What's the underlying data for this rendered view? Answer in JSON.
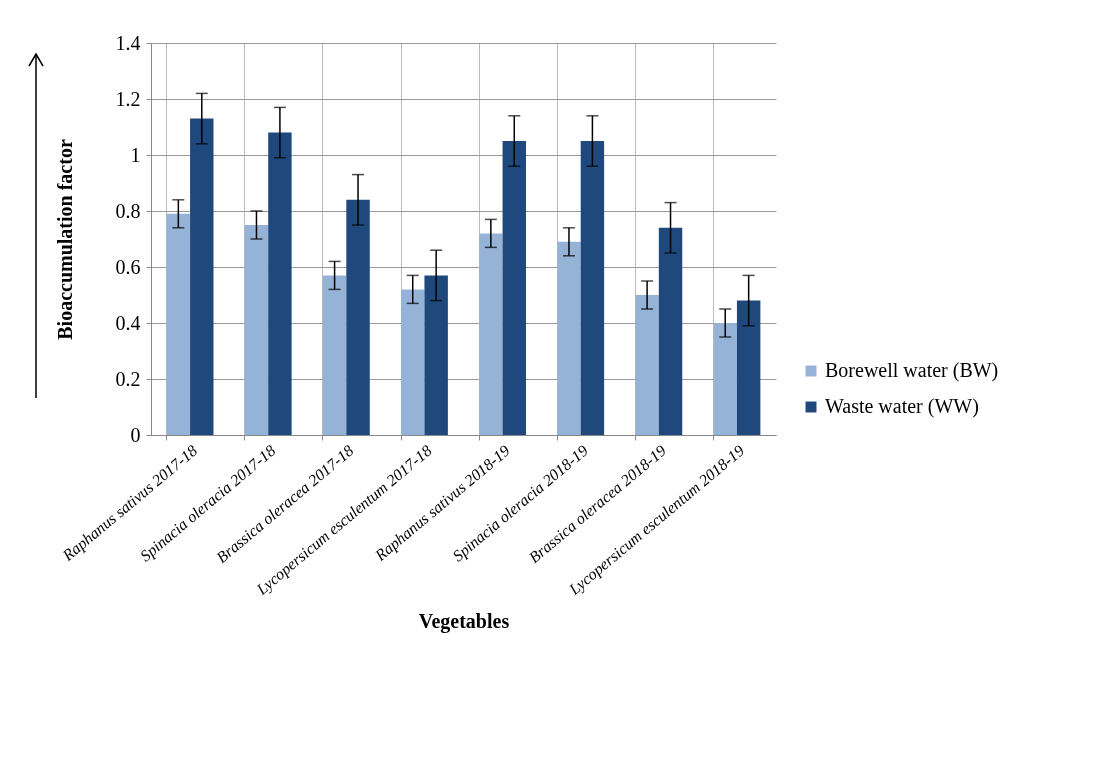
{
  "chart_data": {
    "type": "bar",
    "xlabel": "Vegetables",
    "ylabel": "Bioaccumulation factor",
    "categories": [
      "Raphanus sativus 2017-18",
      "Spinacia oleracia 2017-18",
      "Brassica oleracea 2017-18",
      "Lycopersicum esculentum 2017-18",
      "Raphanus sativus 2018-19",
      "Spinacia oleracia 2018-19",
      "Brassica oleracea 2018-19",
      "Lycopersicum esculentum 2018-19"
    ],
    "series": [
      {
        "name": "Borewell water (BW)",
        "color": "#95b3d7",
        "values": [
          0.79,
          0.75,
          0.57,
          0.52,
          0.72,
          0.69,
          0.5,
          0.4
        ],
        "errors": [
          0.05,
          0.05,
          0.05,
          0.05,
          0.05,
          0.05,
          0.05,
          0.05
        ]
      },
      {
        "name": "Waste water (WW)",
        "color": "#1f497d",
        "values": [
          1.13,
          1.08,
          0.84,
          0.57,
          1.05,
          1.05,
          0.74,
          0.48
        ],
        "errors": [
          0.09,
          0.09,
          0.09,
          0.09,
          0.09,
          0.09,
          0.09,
          0.09
        ]
      }
    ],
    "ylim": [
      0,
      1.4
    ],
    "yticks": [
      0,
      0.2,
      0.4,
      0.6,
      0.8,
      1,
      1.2,
      1.4
    ],
    "grid": true,
    "legend": "right"
  }
}
